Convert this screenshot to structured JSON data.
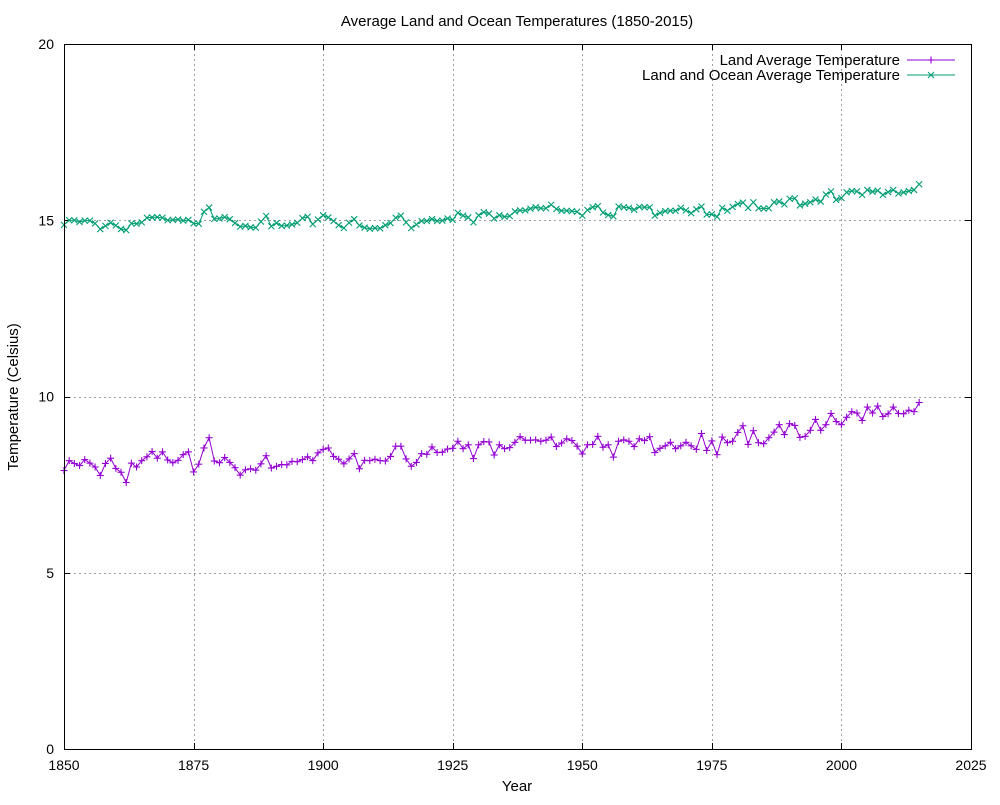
{
  "chart_data": {
    "type": "line",
    "title": "Average Land and Ocean Temperatures (1850-2015)",
    "xlabel": "Year",
    "ylabel": "Temperature (Celsius)",
    "xlim": [
      1850,
      2025
    ],
    "ylim": [
      0,
      20
    ],
    "xticks": [
      1850,
      1875,
      1900,
      1925,
      1950,
      1975,
      2000,
      2025
    ],
    "yticks": [
      0,
      5,
      10,
      15,
      20
    ],
    "grid": true,
    "legend_position": "top-right",
    "x": [
      1850,
      1851,
      1852,
      1853,
      1854,
      1855,
      1856,
      1857,
      1858,
      1859,
      1860,
      1861,
      1862,
      1863,
      1864,
      1865,
      1866,
      1867,
      1868,
      1869,
      1870,
      1871,
      1872,
      1873,
      1874,
      1875,
      1876,
      1877,
      1878,
      1879,
      1880,
      1881,
      1882,
      1883,
      1884,
      1885,
      1886,
      1887,
      1888,
      1889,
      1890,
      1891,
      1892,
      1893,
      1894,
      1895,
      1896,
      1897,
      1898,
      1899,
      1900,
      1901,
      1902,
      1903,
      1904,
      1905,
      1906,
      1907,
      1908,
      1909,
      1910,
      1911,
      1912,
      1913,
      1914,
      1915,
      1916,
      1917,
      1918,
      1919,
      1920,
      1921,
      1922,
      1923,
      1924,
      1925,
      1926,
      1927,
      1928,
      1929,
      1930,
      1931,
      1932,
      1933,
      1934,
      1935,
      1936,
      1937,
      1938,
      1939,
      1940,
      1941,
      1942,
      1943,
      1944,
      1945,
      1946,
      1947,
      1948,
      1949,
      1950,
      1951,
      1952,
      1953,
      1954,
      1955,
      1956,
      1957,
      1958,
      1959,
      1960,
      1961,
      1962,
      1963,
      1964,
      1965,
      1966,
      1967,
      1968,
      1969,
      1970,
      1971,
      1972,
      1973,
      1974,
      1975,
      1976,
      1977,
      1978,
      1979,
      1980,
      1981,
      1982,
      1983,
      1984,
      1985,
      1986,
      1987,
      1988,
      1989,
      1990,
      1991,
      1992,
      1993,
      1994,
      1995,
      1996,
      1997,
      1998,
      1999,
      2000,
      2001,
      2002,
      2003,
      2004,
      2005,
      2006,
      2007,
      2008,
      2009,
      2010,
      2011,
      2012,
      2013,
      2014,
      2015
    ],
    "series": [
      {
        "name": "Land Average Temperature",
        "color": "#9400d3",
        "marker": "plus",
        "values": [
          7.9,
          8.18,
          8.1,
          8.04,
          8.21,
          8.11,
          8.0,
          7.76,
          8.1,
          8.25,
          7.96,
          7.85,
          7.56,
          8.11,
          8.0,
          8.18,
          8.29,
          8.44,
          8.25,
          8.43,
          8.2,
          8.12,
          8.19,
          8.35,
          8.43,
          7.86,
          8.08,
          8.54,
          8.83,
          8.17,
          8.12,
          8.27,
          8.13,
          7.98,
          7.77,
          7.92,
          7.95,
          7.91,
          8.09,
          8.32,
          7.97,
          8.02,
          8.07,
          8.06,
          8.16,
          8.15,
          8.21,
          8.29,
          8.18,
          8.4,
          8.5,
          8.54,
          8.3,
          8.22,
          8.09,
          8.23,
          8.38,
          7.95,
          8.19,
          8.18,
          8.22,
          8.18,
          8.17,
          8.3,
          8.59,
          8.59,
          8.23,
          8.02,
          8.13,
          8.38,
          8.36,
          8.57,
          8.41,
          8.42,
          8.51,
          8.53,
          8.73,
          8.52,
          8.63,
          8.24,
          8.63,
          8.72,
          8.71,
          8.34,
          8.63,
          8.52,
          8.55,
          8.7,
          8.86,
          8.76,
          8.76,
          8.77,
          8.73,
          8.76,
          8.85,
          8.58,
          8.68,
          8.8,
          8.75,
          8.59,
          8.37,
          8.63,
          8.64,
          8.87,
          8.56,
          8.63,
          8.28,
          8.73,
          8.77,
          8.73,
          8.58,
          8.8,
          8.75,
          8.86,
          8.41,
          8.53,
          8.6,
          8.7,
          8.52,
          8.6,
          8.7,
          8.6,
          8.5,
          8.95,
          8.47,
          8.74,
          8.35,
          8.85,
          8.69,
          8.73,
          8.98,
          9.17,
          8.64,
          9.03,
          8.69,
          8.66,
          8.83,
          8.99,
          9.2,
          8.92,
          9.23,
          9.18,
          8.84,
          8.87,
          9.04,
          9.35,
          9.04,
          9.2,
          9.52,
          9.29,
          9.2,
          9.41,
          9.57,
          9.53,
          9.32,
          9.7,
          9.53,
          9.73,
          9.43,
          9.51,
          9.7,
          9.52,
          9.51,
          9.61,
          9.57,
          9.83
        ]
      },
      {
        "name": "Land and Ocean Average Temperature",
        "color": "#009e73",
        "marker": "cross",
        "values": [
          14.87,
          15.0,
          15.0,
          14.95,
          14.99,
          14.99,
          14.91,
          14.75,
          14.84,
          14.93,
          14.85,
          14.75,
          14.72,
          14.91,
          14.9,
          14.94,
          15.07,
          15.08,
          15.09,
          15.07,
          15.0,
          15.01,
          15.02,
          14.99,
          15.01,
          14.91,
          14.9,
          15.24,
          15.36,
          15.04,
          15.05,
          15.09,
          15.03,
          14.92,
          14.82,
          14.84,
          14.8,
          14.79,
          14.96,
          15.12,
          14.83,
          14.92,
          14.84,
          14.85,
          14.88,
          14.93,
          15.06,
          15.1,
          14.89,
          15.02,
          15.14,
          15.08,
          14.98,
          14.86,
          14.78,
          14.93,
          15.03,
          14.85,
          14.79,
          14.76,
          14.78,
          14.77,
          14.86,
          14.92,
          15.07,
          15.13,
          14.94,
          14.78,
          14.88,
          14.98,
          14.98,
          15.03,
          14.98,
          14.99,
          15.05,
          15.01,
          15.21,
          15.13,
          15.08,
          14.94,
          15.14,
          15.23,
          15.19,
          15.05,
          15.14,
          15.1,
          15.12,
          15.25,
          15.28,
          15.28,
          15.33,
          15.37,
          15.34,
          15.34,
          15.44,
          15.32,
          15.27,
          15.27,
          15.26,
          15.24,
          15.13,
          15.29,
          15.37,
          15.4,
          15.22,
          15.15,
          15.11,
          15.39,
          15.37,
          15.35,
          15.3,
          15.38,
          15.37,
          15.37,
          15.13,
          15.21,
          15.26,
          15.27,
          15.27,
          15.35,
          15.28,
          15.2,
          15.31,
          15.39,
          15.16,
          15.17,
          15.1,
          15.35,
          15.27,
          15.38,
          15.46,
          15.5,
          15.35,
          15.51,
          15.34,
          15.33,
          15.34,
          15.51,
          15.53,
          15.45,
          15.61,
          15.62,
          15.42,
          15.47,
          15.51,
          15.59,
          15.53,
          15.73,
          15.82,
          15.58,
          15.63,
          15.79,
          15.83,
          15.82,
          15.72,
          15.86,
          15.81,
          15.84,
          15.72,
          15.8,
          15.86,
          15.76,
          15.79,
          15.83,
          15.86,
          16.02
        ]
      }
    ]
  }
}
